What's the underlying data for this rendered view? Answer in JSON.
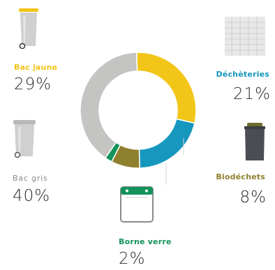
{
  "chart_data": {
    "type": "pie",
    "variant": "donut",
    "series": [
      {
        "label": "Bac jaune",
        "value": 29,
        "display": "29%",
        "color": "#f2c519",
        "label_color": "#f2c519",
        "icon": "yellow-bin-icon"
      },
      {
        "label": "Déchèteries",
        "value": 21,
        "display": "21%",
        "color": "#1697bd",
        "label_color": "#1697bd",
        "icon": "recycling-center-icon"
      },
      {
        "label": "Biodéchets",
        "value": 8,
        "display": "8%",
        "color": "#8f8030",
        "label_color": "#8f8030",
        "icon": "biowaste-bin-icon"
      },
      {
        "label": "Borne verre",
        "value": 2,
        "display": "2%",
        "color": "#14935a",
        "label_color": "#14935a",
        "icon": "glass-bank-icon"
      },
      {
        "label": "Bac gris",
        "value": 40,
        "display": "40%",
        "color": "#c4c5c3",
        "label_color": "#8a8a8a",
        "icon": "grey-bin-icon"
      }
    ]
  }
}
